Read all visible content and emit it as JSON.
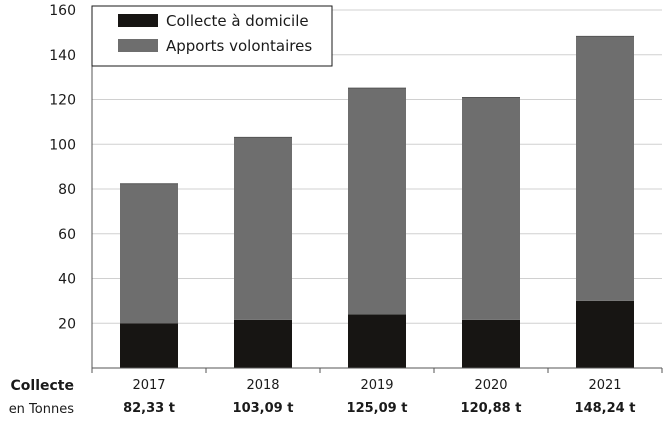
{
  "chart_data": {
    "type": "bar",
    "stacked": true,
    "categories": [
      "2017",
      "2018",
      "2019",
      "2020",
      "2021"
    ],
    "series": [
      {
        "name": "Collecte à domicile",
        "values": [
          20,
          21.5,
          24,
          21.5,
          30
        ],
        "color": "#171513"
      },
      {
        "name": "Apports volontaires",
        "values": [
          62.33,
          81.59,
          101.09,
          99.38,
          118.24
        ],
        "color": "#6e6e6e"
      }
    ],
    "ylim": [
      0,
      160
    ],
    "yticks": [
      20,
      40,
      60,
      80,
      100,
      120,
      140,
      160
    ],
    "grid": true,
    "legend": "top-left",
    "totals_row": {
      "title": "Collecte",
      "subtitle": "en Tonnes",
      "values": [
        "82,33 t",
        "103,09 t",
        "125,09 t",
        "120,88 t",
        "148,24 t"
      ]
    }
  }
}
